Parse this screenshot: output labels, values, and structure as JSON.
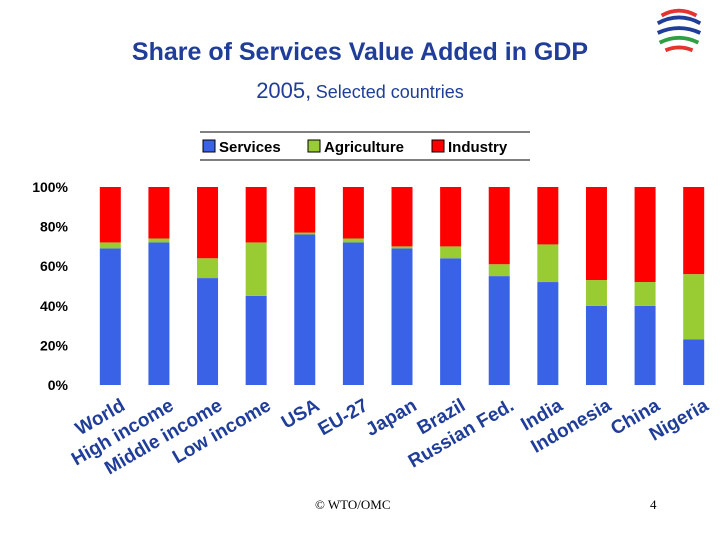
{
  "slide": {
    "title": "Share of Services Value Added in GDP",
    "subtitle_year": "2005,",
    "subtitle_rest": "Selected countries",
    "footer_copyright": "© WTO/OMC",
    "page_number": "4"
  },
  "logo": {
    "icon": "wto-logo-icon",
    "colors": [
      "#e3342f",
      "#1f3d99",
      "#2f9e44"
    ]
  },
  "chart_data": {
    "type": "bar",
    "stacked": true,
    "percent": true,
    "categories": [
      "World",
      "High income",
      "Middle income",
      "Low income",
      "USA",
      "EU-27",
      "Japan",
      "Brazil",
      "Russian Fed.",
      "India",
      "Indonesia",
      "China",
      "Nigeria"
    ],
    "series": [
      {
        "name": "Services",
        "color": "#3a62e6",
        "values": [
          69,
          72,
          54,
          45,
          76,
          72,
          69,
          64,
          55,
          52,
          40,
          40,
          23
        ]
      },
      {
        "name": "Agriculture",
        "color": "#99cc33",
        "values": [
          3,
          2,
          10,
          27,
          1,
          2,
          1,
          6,
          6,
          19,
          13,
          12,
          33
        ]
      },
      {
        "name": "Industry",
        "color": "#ff0000",
        "values": [
          28,
          26,
          36,
          28,
          23,
          26,
          30,
          30,
          39,
          29,
          47,
          48,
          44
        ]
      }
    ],
    "y_ticks": [
      "0%",
      "20%",
      "40%",
      "60%",
      "80%",
      "100%"
    ],
    "ylim": [
      0,
      100
    ],
    "grid": false,
    "legend_position": "top"
  }
}
